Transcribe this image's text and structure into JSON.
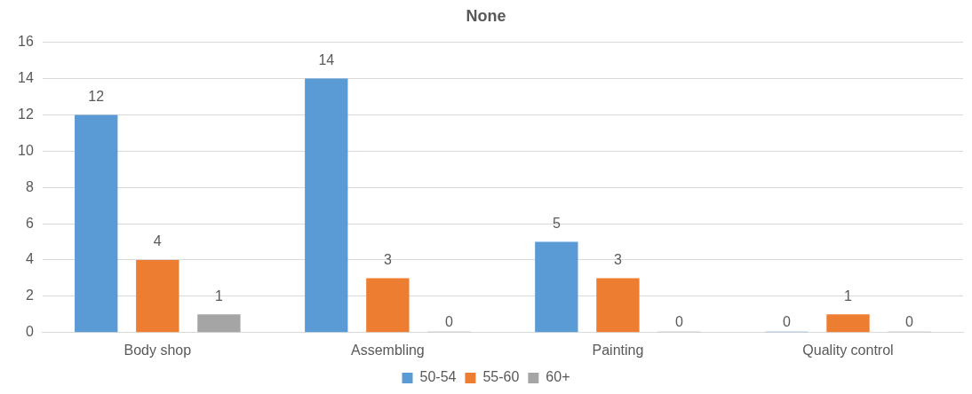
{
  "chart_data": {
    "type": "bar",
    "title": "None",
    "categories": [
      "Body shop",
      "Assembling",
      "Painting",
      "Quality control"
    ],
    "series": [
      {
        "name": "50-54",
        "color": "#5b9bd5",
        "values": [
          12,
          14,
          5,
          0
        ]
      },
      {
        "name": "55-60",
        "color": "#ed7d31",
        "values": [
          4,
          3,
          3,
          1
        ]
      },
      {
        "name": "60+",
        "color": "#a5a5a5",
        "values": [
          1,
          0,
          0,
          0
        ]
      }
    ],
    "ylim": [
      0,
      16
    ],
    "yticks": [
      0,
      2,
      4,
      6,
      8,
      10,
      12,
      14,
      16
    ],
    "grid": "y",
    "legend": "bottom",
    "data_labels": true
  }
}
